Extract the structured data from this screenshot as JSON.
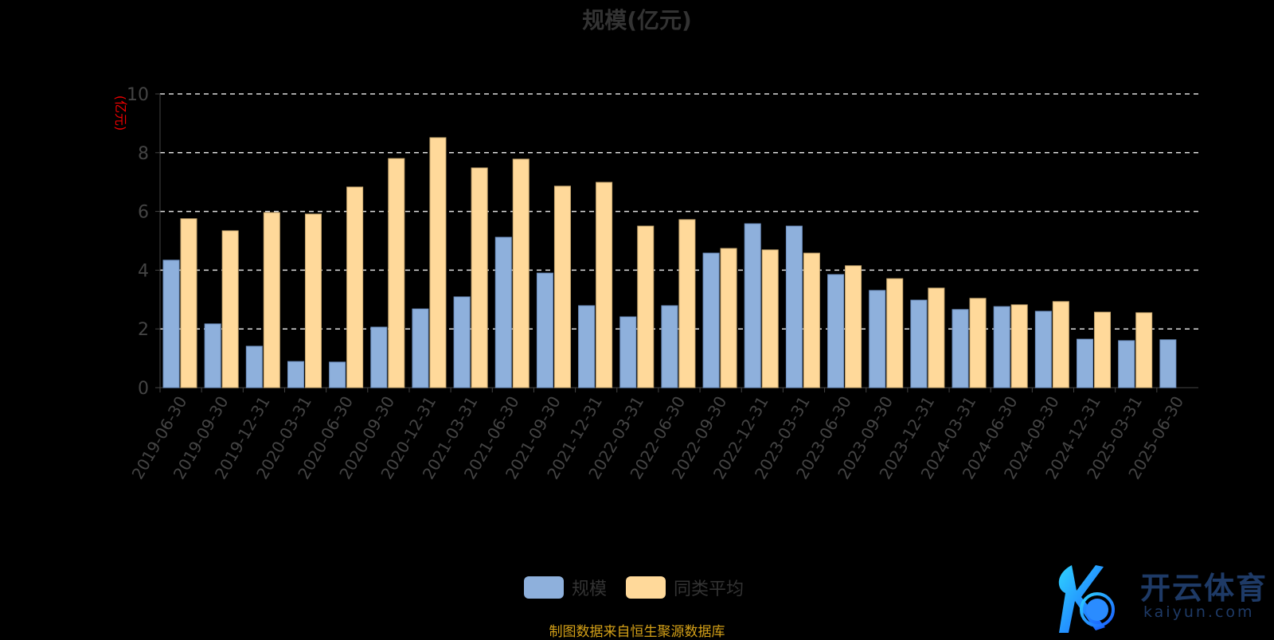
{
  "chart_data": {
    "type": "bar",
    "title": "规模(亿元)",
    "ylabel": "(亿元)",
    "xlabel": "",
    "ylim": [
      0,
      10
    ],
    "yticks": [
      0,
      2,
      4,
      6,
      8,
      10
    ],
    "grid": true,
    "legend_placement": "bottom",
    "categories": [
      "2019-06-30",
      "2019-09-30",
      "2019-12-31",
      "2020-03-31",
      "2020-06-30",
      "2020-09-30",
      "2020-12-31",
      "2021-03-31",
      "2021-06-30",
      "2021-09-30",
      "2021-12-31",
      "2022-03-31",
      "2022-06-30",
      "2022-09-30",
      "2022-12-31",
      "2023-03-31",
      "2023-06-30",
      "2023-09-30",
      "2023-12-31",
      "2024-03-31",
      "2024-06-30",
      "2024-09-30",
      "2024-12-31",
      "2025-03-31",
      "2025-06-30"
    ],
    "series": [
      {
        "name": "规模",
        "color": "#8eb0dc",
        "values": [
          4.34,
          2.17,
          1.41,
          0.89,
          0.87,
          2.06,
          2.68,
          3.09,
          5.12,
          3.9,
          2.79,
          2.41,
          2.79,
          4.58,
          5.58,
          5.5,
          3.85,
          3.31,
          2.98,
          2.66,
          2.76,
          2.6,
          1.65,
          1.6,
          1.63
        ]
      },
      {
        "name": "同类平均",
        "color": "#ffd99a",
        "values": [
          5.75,
          5.34,
          5.96,
          5.91,
          6.83,
          7.8,
          8.51,
          7.48,
          7.78,
          6.86,
          6.99,
          5.5,
          5.72,
          4.74,
          4.69,
          4.58,
          4.15,
          3.71,
          3.39,
          3.04,
          2.82,
          2.93,
          2.57,
          2.55,
          null
        ]
      }
    ]
  },
  "source": "制图数据来自恒生聚源数据库",
  "watermark": {
    "cn": "开云体育",
    "en": "kaiyun.com"
  }
}
